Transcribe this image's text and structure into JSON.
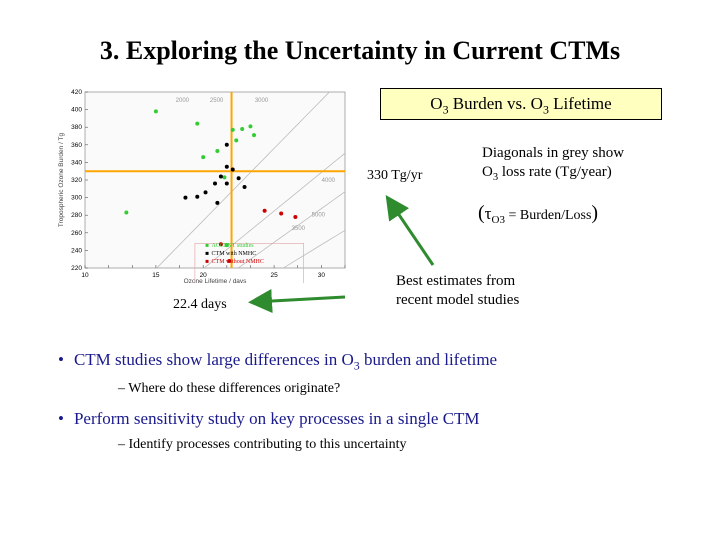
{
  "slide": {
    "title": "3. Exploring the Uncertainty in Current CTMs",
    "chart_box": {
      "text": "O",
      "sub": "3",
      "text2": " Burden vs. O",
      "sub2": "3",
      "text3": " Lifetime"
    },
    "rate_label": "330 Tg/yr",
    "diag_note": {
      "line1": "Diagonals in grey show",
      "line2_a": "O",
      "line2_sub": "3",
      "line2_b": " loss rate (Tg/year)"
    },
    "tau_eq": {
      "open": "(",
      "tau": "τ",
      "sub": "O3",
      "rest": " = Burden/Loss",
      "close": ")"
    },
    "best_note": {
      "line1": "Best estimates from",
      "line2": "recent model studies"
    },
    "lifetime_label": "22.4 days",
    "bullets": [
      {
        "a": "CTM studies show large differences in O",
        "sub": "3",
        "b": " burden and lifetime",
        "sub_item": "Where do these differences originate?"
      },
      {
        "a": "Perform sensitivity study on key processes in a single CTM",
        "sub": "",
        "b": "",
        "sub_item": "Identify processes contributing to this uncertainty"
      }
    ],
    "colors": {
      "bullet_text": "#1a1a8c",
      "highlight": "#ffa500",
      "arrow": "#228b22",
      "box_fill": "#ffffc0"
    }
  },
  "chart_data": {
    "type": "scatter",
    "xlabel": "Ozone Lifetime / days",
    "ylabel": "Tropospheric Ozone Burden / Tg",
    "xlim": [
      10,
      32
    ],
    "ylim": [
      220,
      420
    ],
    "xticks": [
      10,
      12,
      14,
      16,
      18,
      20,
      22,
      24,
      26,
      28,
      30,
      32
    ],
    "xtick_labels": [
      "10",
      "",
      "",
      "15",
      "",
      "20",
      "",
      "",
      "25",
      "",
      "30",
      ""
    ],
    "yticks": [
      220,
      240,
      260,
      280,
      300,
      320,
      340,
      360,
      380,
      400,
      420
    ],
    "diagonal_labels": [
      "5000",
      "4000",
      "3500",
      "3000",
      "2500",
      "2000"
    ],
    "loss_diagonals": [
      2000,
      2500,
      3000,
      3500,
      4000,
      5000
    ],
    "highlight_lines": {
      "x": 22.4,
      "y": 330
    },
    "legend": [
      "ACCENT studies",
      "CTM with NMHC",
      "CTM without NMHC"
    ],
    "legend_placement": "bottom-center",
    "series": [
      {
        "name": "ACCENT studies",
        "color": "#33cc33",
        "points": [
          [
            16,
            398
          ],
          [
            19.5,
            384
          ],
          [
            20,
            346
          ],
          [
            22.5,
            377
          ],
          [
            22.8,
            365
          ],
          [
            23.3,
            378
          ],
          [
            24,
            381
          ],
          [
            24.3,
            371
          ],
          [
            21.2,
            353
          ],
          [
            21.8,
            323
          ],
          [
            13.5,
            283
          ],
          [
            22,
            246
          ]
        ]
      },
      {
        "name": "CTM with NMHC",
        "color": "#000000",
        "points": [
          [
            22,
            360
          ],
          [
            23,
            322
          ],
          [
            22,
            335
          ],
          [
            22.5,
            332
          ],
          [
            23.5,
            312
          ],
          [
            18.5,
            300
          ],
          [
            19.5,
            301
          ],
          [
            20.2,
            306
          ],
          [
            21,
            316
          ],
          [
            21.5,
            324
          ],
          [
            22,
            316
          ],
          [
            21.2,
            294
          ]
        ]
      },
      {
        "name": "CTM without NMHC",
        "color": "#cc0000",
        "points": [
          [
            25.2,
            285
          ],
          [
            26.6,
            282
          ],
          [
            27.8,
            278
          ],
          [
            21.5,
            247
          ],
          [
            22.2,
            228
          ]
        ]
      }
    ]
  }
}
